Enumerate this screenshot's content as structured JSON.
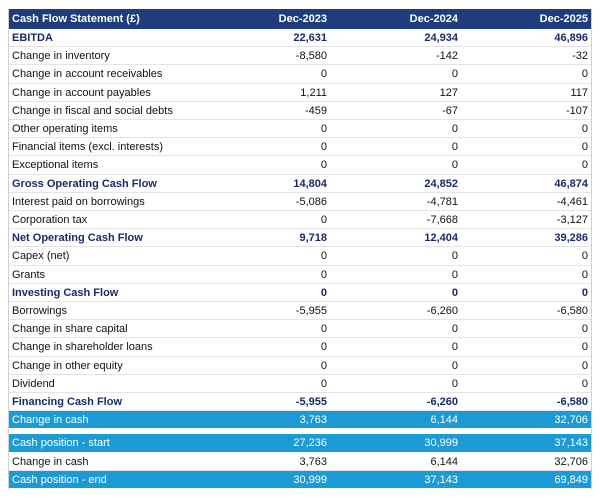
{
  "table": {
    "header": [
      "Cash Flow Statement (£)",
      "Dec-2023",
      "Dec-2024",
      "Dec-2025"
    ],
    "rows": [
      [
        "EBITDA",
        "22,631",
        "24,934",
        "46,896"
      ],
      [
        "Change in inventory",
        "-8,580",
        "-142",
        "-32"
      ],
      [
        "Change in account receivables",
        "0",
        "0",
        "0"
      ],
      [
        "Change in account payables",
        "1,211",
        "127",
        "117"
      ],
      [
        "Change in fiscal and social debts",
        "-459",
        "-67",
        "-107"
      ],
      [
        "Other operating items",
        "0",
        "0",
        "0"
      ],
      [
        "Financial items (excl. interests)",
        "0",
        "0",
        "0"
      ],
      [
        "Exceptional items",
        "0",
        "0",
        "0"
      ],
      [
        "Gross Operating Cash Flow",
        "14,804",
        "24,852",
        "46,874"
      ],
      [
        "Interest paid on borrowings",
        "-5,086",
        "-4,781",
        "-4,461"
      ],
      [
        "Corporation tax",
        "0",
        "-7,668",
        "-3,127"
      ],
      [
        "Net Operating Cash Flow",
        "9,718",
        "12,404",
        "39,286"
      ],
      [
        "Capex (net)",
        "0",
        "0",
        "0"
      ],
      [
        "Grants",
        "0",
        "0",
        "0"
      ],
      [
        "Investing Cash Flow",
        "0",
        "0",
        "0"
      ],
      [
        "Borrowings",
        "-5,955",
        "-6,260",
        "-6,580"
      ],
      [
        "Change in share capital",
        "0",
        "0",
        "0"
      ],
      [
        "Change in shareholder loans",
        "0",
        "0",
        "0"
      ],
      [
        "Change in other equity",
        "0",
        "0",
        "0"
      ],
      [
        "Dividend",
        "0",
        "0",
        "0"
      ],
      [
        "Financing Cash Flow",
        "-5,955",
        "-6,260",
        "-6,580"
      ],
      [
        "Change in cash",
        "3,763",
        "6,144",
        "32,706"
      ]
    ]
  },
  "summary": {
    "rows": [
      [
        "Cash position - start",
        "27,236",
        "30,999",
        "37,143"
      ],
      [
        "Change in cash",
        "3,763",
        "6,144",
        "32,706"
      ],
      [
        "Cash position - end",
        "30,999",
        "37,143",
        "69,849"
      ]
    ]
  }
}
